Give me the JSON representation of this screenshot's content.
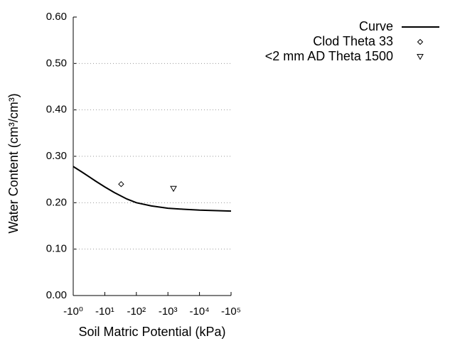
{
  "chart_data": {
    "type": "line",
    "x_label": "Soil Matric Potential (kPa)",
    "y_label": "Water Content (cm³/cm³)",
    "xscale": "log",
    "xlim": [
      -1,
      -100000
    ],
    "xticks": [
      {
        "value": -1,
        "label": "-10⁰"
      },
      {
        "value": -10,
        "label": "-10¹"
      },
      {
        "value": -100,
        "label": "-10²"
      },
      {
        "value": -1000,
        "label": "-10³"
      },
      {
        "value": -10000,
        "label": "-10⁴"
      },
      {
        "value": -100000,
        "label": "-10⁵"
      }
    ],
    "ylim": [
      0,
      0.6
    ],
    "yticks": [
      {
        "value": 0,
        "label": "0.00"
      },
      {
        "value": 0.1,
        "label": "0.10"
      },
      {
        "value": 0.2,
        "label": "0.20"
      },
      {
        "value": 0.3,
        "label": "0.30"
      },
      {
        "value": 0.4,
        "label": "0.40"
      },
      {
        "value": 0.5,
        "label": "0.50"
      },
      {
        "value": 0.6,
        "label": "0.60"
      }
    ],
    "grid": true,
    "legend": "top-right",
    "series": [
      {
        "name": "Curve",
        "kind": "line",
        "color": "#000000",
        "x": [
          -1,
          -2,
          -5,
          -10,
          -20,
          -50,
          -100,
          -300,
          -1000,
          -3000,
          -10000,
          -100000
        ],
        "values": [
          0.278,
          0.265,
          0.247,
          0.234,
          0.222,
          0.208,
          0.2,
          0.193,
          0.188,
          0.186,
          0.184,
          0.182
        ]
      },
      {
        "name": "Clod Theta 33",
        "kind": "scatter",
        "marker": "diamond",
        "color": "#000000",
        "x": [
          -33
        ],
        "values": [
          0.24
        ]
      },
      {
        "name": "<2 mm AD Theta 1500",
        "kind": "scatter",
        "marker": "triangle-down",
        "color": "#000000",
        "x": [
          -1500
        ],
        "values": [
          0.23
        ]
      }
    ]
  }
}
